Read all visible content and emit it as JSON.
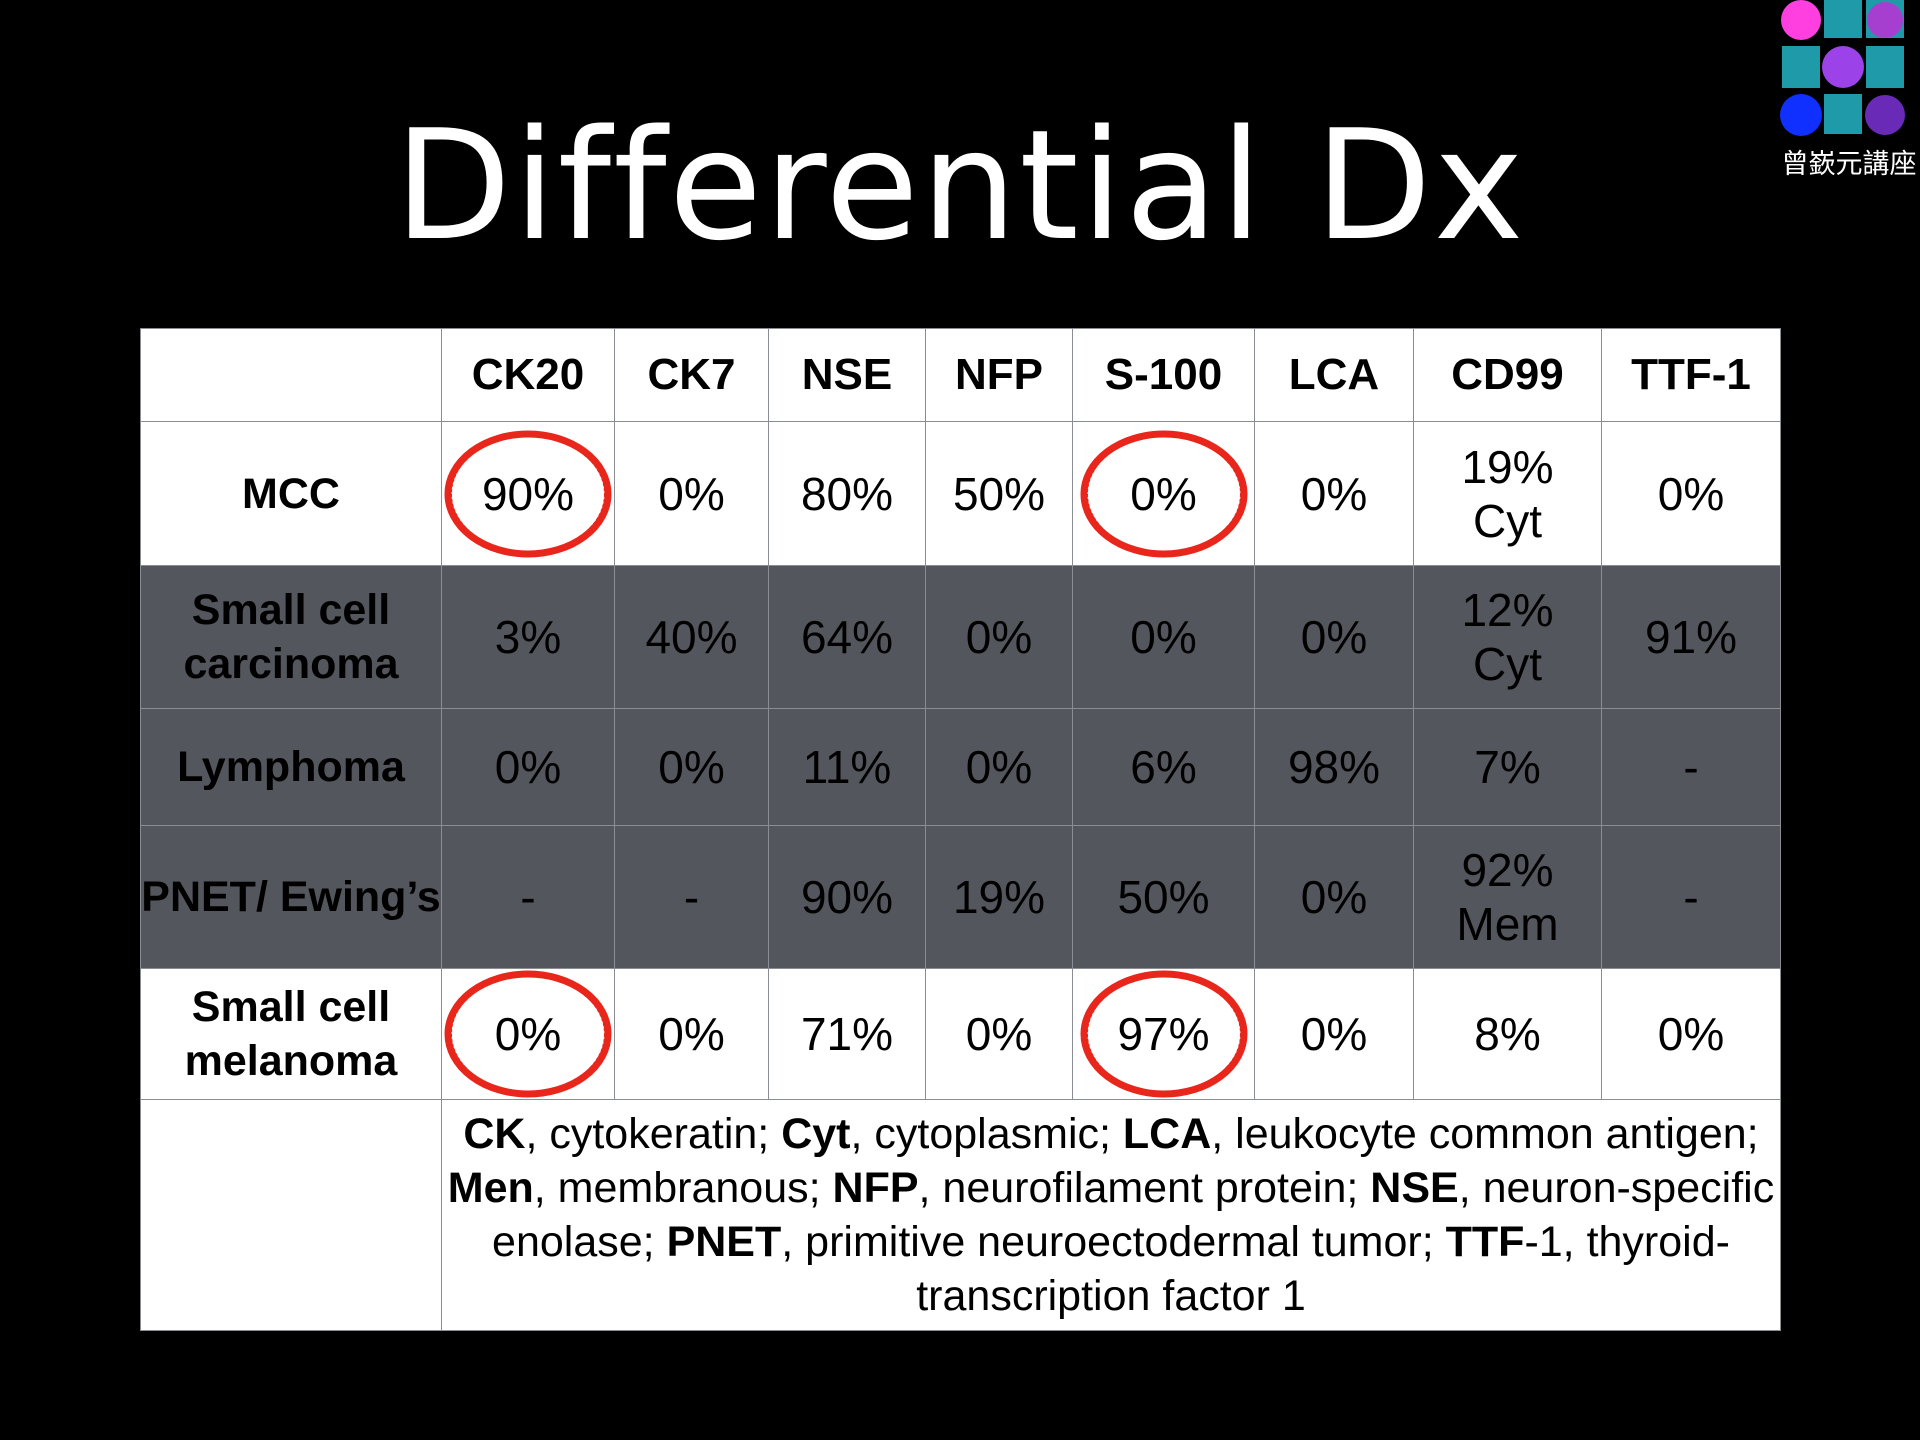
{
  "slide": {
    "title": "Differential Dx",
    "logo_text": "曾嶔元講座"
  },
  "table": {
    "columns": [
      "",
      "CK20",
      "CK7",
      "NSE",
      "NFP",
      "S-100",
      "LCA",
      "CD99",
      "TTF-1"
    ],
    "rows": [
      {
        "label": "MCC",
        "values": [
          "90%",
          "0%",
          "80%",
          "50%",
          "0%",
          "0%",
          "19%\nCyt",
          "0%"
        ],
        "circled": [
          0,
          4
        ]
      },
      {
        "label": "Small cell carcinoma",
        "values": [
          "3%",
          "40%",
          "64%",
          "0%",
          "0%",
          "0%",
          "12%\nCyt",
          "91%"
        ],
        "circled": []
      },
      {
        "label": "Lymphoma",
        "values": [
          "0%",
          "0%",
          "11%",
          "0%",
          "6%",
          "98%",
          "7%",
          "-"
        ],
        "circled": []
      },
      {
        "label": "PNET/ Ewing’s",
        "values": [
          "-",
          "-",
          "90%",
          "19%",
          "50%",
          "0%",
          "92%\nMem",
          "-"
        ],
        "circled": []
      },
      {
        "label": "Small cell melanoma",
        "values": [
          "0%",
          "0%",
          "71%",
          "0%",
          "97%",
          "0%",
          "8%",
          "0%"
        ],
        "circled": [
          0,
          4
        ]
      }
    ],
    "footnote": [
      {
        "term": "CK",
        "text": ", cytokeratin; "
      },
      {
        "term": "Cyt",
        "text": ", cytoplasmic; "
      },
      {
        "term": "LCA",
        "text": ", leukocyte common antigen; "
      },
      {
        "term": "Men",
        "text": ", membranous; "
      },
      {
        "term": "NFP",
        "text": ", neurofilament protein; "
      },
      {
        "term": "NSE",
        "text": ", neuron-specific enolase; "
      },
      {
        "term": "PNET",
        "text": ", primitive neuroectodermal tumor; "
      },
      {
        "term": "TTF",
        "text": "-1, thyroid-transcription factor 1"
      }
    ]
  },
  "colors": {
    "background": "#000000",
    "dark_row": "#53565c",
    "light_row": "#ffffff",
    "circle": "#e8261b",
    "logo": [
      "#ff3fe0",
      "#1f9aa8",
      "#a63fd0",
      "#1f9aa8",
      "#9b43e8",
      "#1f9aa8",
      "#1030ff",
      "#1f9aa8",
      "#6a2ab8"
    ]
  }
}
